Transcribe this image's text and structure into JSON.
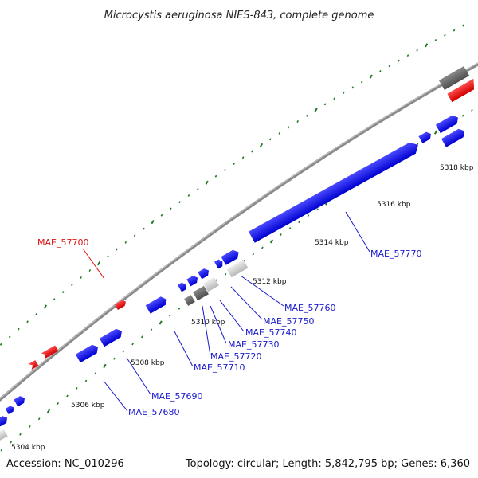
{
  "title": "Microcystis aeruginosa NIES-843, complete genome",
  "footer": {
    "accession": "Accession: NC_010296",
    "summary": "Topology: circular; Length: 5,842,795 bp; Genes: 6,360"
  },
  "colors": {
    "forward_gene": "#1a1aff",
    "reverse_gene": "#ff1a1a",
    "pseudo_light": "#cfcfcf",
    "pseudo_dark": "#6e6e6e",
    "backbone": "#8a8a8a",
    "tick": "#1f7a1f",
    "label_forward": "#1a1acc",
    "label_reverse": "#dd1111"
  },
  "scale_labels": [
    "5304 kbp",
    "5306 kbp",
    "5308 kbp",
    "5310 kbp",
    "5312 kbp",
    "5314 kbp",
    "5316 kbp",
    "5318 kbp"
  ],
  "gene_labels": [
    {
      "id": "MAE_57700",
      "strand": "reverse"
    },
    {
      "id": "MAE_57770",
      "strand": "forward"
    },
    {
      "id": "MAE_57760",
      "strand": "forward"
    },
    {
      "id": "MAE_57750",
      "strand": "forward"
    },
    {
      "id": "MAE_57740",
      "strand": "forward"
    },
    {
      "id": "MAE_57730",
      "strand": "forward"
    },
    {
      "id": "MAE_57720",
      "strand": "forward"
    },
    {
      "id": "MAE_57710",
      "strand": "forward"
    },
    {
      "id": "MAE_57690",
      "strand": "forward"
    },
    {
      "id": "MAE_57680",
      "strand": "forward"
    }
  ]
}
